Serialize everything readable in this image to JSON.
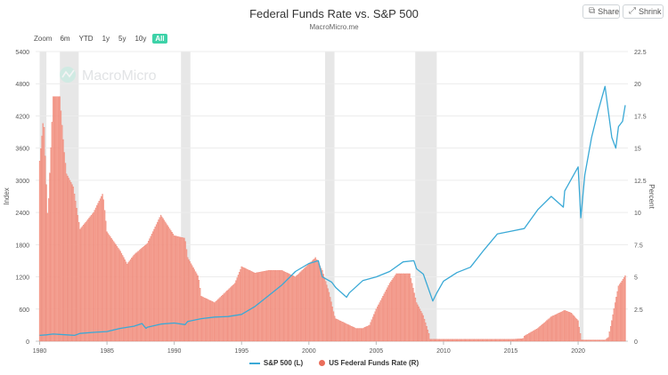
{
  "header": {
    "title": "Federal Funds Rate vs. S&P 500",
    "subtitle": "MacroMicro.me"
  },
  "toolbar": {
    "share_label": "Share",
    "shrink_label": "Shrink",
    "share_icon": "share-icon",
    "shrink_icon": "shrink-icon"
  },
  "zoom": {
    "label": "Zoom",
    "options": [
      "6m",
      "YTD",
      "1y",
      "5y",
      "10y",
      "All"
    ],
    "selected": "All"
  },
  "watermark": {
    "text": "MacroMicro"
  },
  "colors": {
    "sp500": "#3aa9d6",
    "fed_funds": "#ea6d5a",
    "fed_funds_fill": "#f6a99b",
    "recession": "#e7e7e7",
    "accent": "#3dd2a8"
  },
  "chart_data": {
    "type": "line",
    "x_range": [
      1979.7,
      2023.7
    ],
    "x_ticks": [
      "1980",
      "1985",
      "1990",
      "1995",
      "2000",
      "2005",
      "2010",
      "2015",
      "2020"
    ],
    "y_left": {
      "label": "Index",
      "min": 0,
      "max": 5400,
      "ticks": [
        "0",
        "600",
        "1200",
        "1800",
        "2400",
        "3000",
        "3600",
        "4200",
        "4800",
        "5400"
      ]
    },
    "y_right": {
      "label": "Percent",
      "min": 0,
      "max": 22.5,
      "ticks": [
        "0",
        "2.5",
        "5",
        "7.5",
        "10",
        "12.5",
        "15",
        "17.5",
        "20",
        "22.5"
      ]
    },
    "recessions": [
      [
        1980.0,
        1980.5
      ],
      [
        1981.5,
        1982.9
      ],
      [
        1990.5,
        1991.2
      ],
      [
        2001.2,
        2001.9
      ],
      [
        2007.9,
        2009.5
      ],
      [
        2020.1,
        2020.4
      ]
    ],
    "legend_position": "bottom-center",
    "series": [
      {
        "name": "S&P 500 (L)",
        "axis": "left",
        "style": "line",
        "x": [
          1980,
          1980.5,
          1981,
          1982,
          1982.6,
          1983,
          1984,
          1985,
          1986,
          1987,
          1987.6,
          1987.9,
          1988,
          1989,
          1990,
          1990.8,
          1991,
          1992,
          1993,
          1994,
          1995,
          1996,
          1997,
          1998,
          1999,
          2000,
          2000.7,
          2001,
          2001.7,
          2002,
          2002.8,
          2003,
          2004,
          2005,
          2006,
          2007,
          2007.8,
          2008,
          2008.5,
          2009.2,
          2009.5,
          2010,
          2011,
          2012,
          2013,
          2014,
          2015,
          2016,
          2017,
          2018,
          2018.9,
          2019,
          2020,
          2020.2,
          2020.5,
          2021,
          2021.5,
          2022,
          2022.5,
          2022.8,
          2023,
          2023.3,
          2023.5
        ],
        "y": [
          110,
          120,
          135,
          120,
          110,
          145,
          165,
          180,
          240,
          280,
          330,
          240,
          260,
          320,
          340,
          310,
          370,
          420,
          450,
          460,
          500,
          650,
          850,
          1050,
          1300,
          1450,
          1500,
          1200,
          1100,
          1000,
          820,
          900,
          1130,
          1200,
          1300,
          1480,
          1500,
          1350,
          1250,
          750,
          900,
          1120,
          1280,
          1380,
          1700,
          2000,
          2050,
          2100,
          2450,
          2700,
          2500,
          2800,
          3250,
          2300,
          3100,
          3800,
          4300,
          4750,
          3800,
          3600,
          4000,
          4100,
          4400
        ]
      },
      {
        "name": "US Federal Funds Rate (R)",
        "axis": "right",
        "style": "bars",
        "x": [
          1980,
          1980.3,
          1980.6,
          1981,
          1981.5,
          1981.8,
          1982,
          1982.5,
          1982.8,
          1983,
          1984,
          1984.7,
          1985,
          1986,
          1986.5,
          1987,
          1988,
          1989,
          1989.5,
          1990,
          1990.8,
          1991,
          1991.8,
          1992,
          1993,
          1994,
          1994.5,
          1995,
          1996,
          1997,
          1998,
          1999,
          2000,
          2000.5,
          2001,
          2001.5,
          2001.9,
          2002,
          2003,
          2003.5,
          2004,
          2004.5,
          2005,
          2006,
          2006.5,
          2007,
          2007.5,
          2008,
          2008.5,
          2008.95,
          2009,
          2010,
          2015,
          2015.9,
          2016,
          2017,
          2018,
          2019,
          2019.5,
          2020,
          2020.25,
          2021,
          2022,
          2022.25,
          2022.5,
          2022.75,
          2023,
          2023.3,
          2023.5
        ],
        "y": [
          14,
          17.5,
          9.5,
          19,
          19,
          15,
          13,
          12,
          10,
          8.7,
          10,
          11.5,
          8.5,
          7,
          6,
          6.7,
          7.6,
          9.8,
          9.0,
          8.2,
          8.0,
          6.5,
          5.0,
          3.5,
          3.0,
          4.0,
          4.5,
          5.8,
          5.3,
          5.5,
          5.5,
          5.0,
          6.0,
          6.5,
          5.5,
          3.8,
          2.0,
          1.75,
          1.25,
          1.0,
          1.0,
          1.25,
          2.5,
          4.5,
          5.25,
          5.25,
          5.25,
          3.0,
          2.0,
          0.5,
          0.15,
          0.15,
          0.15,
          0.2,
          0.4,
          1.0,
          1.9,
          2.4,
          2.2,
          1.6,
          0.1,
          0.1,
          0.1,
          0.3,
          1.6,
          3.0,
          4.3,
          4.75,
          5.1
        ]
      }
    ]
  }
}
